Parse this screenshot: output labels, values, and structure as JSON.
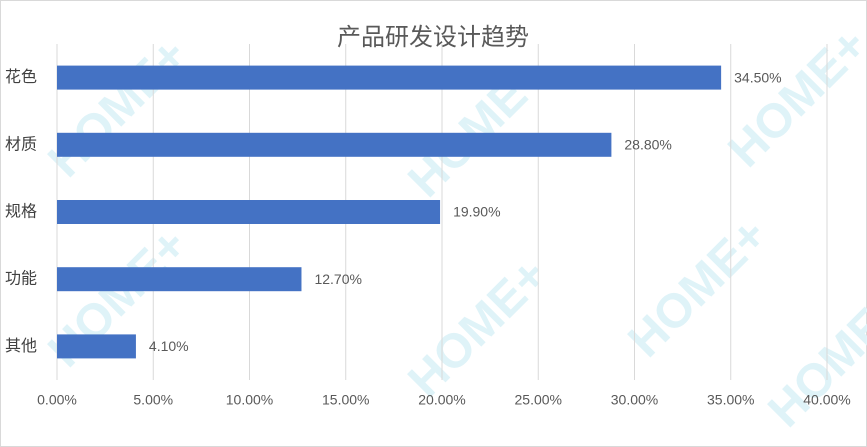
{
  "chart_data": {
    "type": "bar",
    "orientation": "horizontal",
    "title": "产品研发设计趋势",
    "watermark": "HOME+",
    "categories": [
      "花色",
      "材质",
      "规格",
      "功能",
      "其他"
    ],
    "values": [
      34.5,
      28.8,
      19.9,
      12.7,
      4.1
    ],
    "value_labels": [
      "34.50%",
      "28.80%",
      "19.90%",
      "12.70%",
      "4.10%"
    ],
    "color": "#4472c4",
    "xlim": [
      0,
      40
    ],
    "xticks": [
      {
        "value": 0,
        "label": "0.00%"
      },
      {
        "value": 5,
        "label": "5.00%"
      },
      {
        "value": 10,
        "label": "10.00%"
      },
      {
        "value": 15,
        "label": "15.00%"
      },
      {
        "value": 20,
        "label": "20.00%"
      },
      {
        "value": 25,
        "label": "25.00%"
      },
      {
        "value": 30,
        "label": "30.00%"
      },
      {
        "value": 35,
        "label": "35.00%"
      },
      {
        "value": 40,
        "label": "40.00%"
      }
    ],
    "grid": true
  }
}
